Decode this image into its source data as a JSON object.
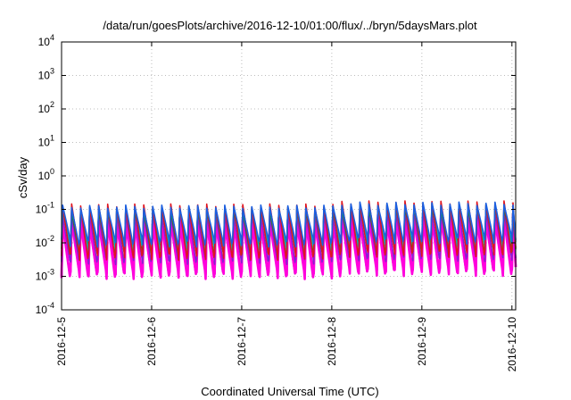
{
  "chart_data": {
    "type": "line",
    "title": "/data/run/goesPlots/archive/2016-12-10/01:00/flux/../bryn/5daysMars.plot",
    "xlabel": "Coordinated Universal Time (UTC)",
    "ylabel": "cSv/day",
    "yscale": "log",
    "ylim": [
      0.0001,
      10000
    ],
    "xlim": [
      "2016-12-05T00:00",
      "2016-12-10T01:00"
    ],
    "y_ticks": [
      {
        "base": "10",
        "exp": "-4",
        "value": 0.0001
      },
      {
        "base": "10",
        "exp": "-3",
        "value": 0.001
      },
      {
        "base": "10",
        "exp": "-2",
        "value": 0.01
      },
      {
        "base": "10",
        "exp": "-1",
        "value": 0.1
      },
      {
        "base": "10",
        "exp": "0",
        "value": 1
      },
      {
        "base": "10",
        "exp": "1",
        "value": 10
      },
      {
        "base": "10",
        "exp": "2",
        "value": 100
      },
      {
        "base": "10",
        "exp": "3",
        "value": 1000
      },
      {
        "base": "10",
        "exp": "4",
        "value": 10000
      }
    ],
    "x_ticks": [
      {
        "label": "2016-12-5",
        "value": "2016-12-05T00:00"
      },
      {
        "label": "2016-12-6",
        "value": "2016-12-06T00:00"
      },
      {
        "label": "2016-12-7",
        "value": "2016-12-07T00:00"
      },
      {
        "label": "2016-12-8",
        "value": "2016-12-08T00:00"
      },
      {
        "label": "2016-12-9",
        "value": "2016-12-09T00:00"
      },
      {
        "label": "2016-12-10",
        "value": "2016-12-10T00:00"
      }
    ],
    "grid": true,
    "legend": "none",
    "pattern": {
      "description": "sawtooth dose-rate curves, about 10 cycles per day",
      "cycles_per_day": 10,
      "step_date": "2016-12-08T01:00",
      "peak_before_step": 0.13,
      "peak_after_step": 0.16
    },
    "series": [
      {
        "color": "#e0141e",
        "high": 0.13,
        "low": 0.004
      },
      {
        "color": "#00b8b8",
        "high": 0.11,
        "low": 0.007
      },
      {
        "color": "#1a5fe0",
        "high": 0.12,
        "low": 0.01
      },
      {
        "color": "#0a8c2a",
        "high": 0.1,
        "low": 0.006
      },
      {
        "color": "#8a1fd0",
        "high": 0.07,
        "low": 0.003
      },
      {
        "color": "#e600c8",
        "high": 0.05,
        "low": 0.0013
      },
      {
        "color": "#ff00dd",
        "high": 0.04,
        "low": 0.0011
      }
    ]
  }
}
